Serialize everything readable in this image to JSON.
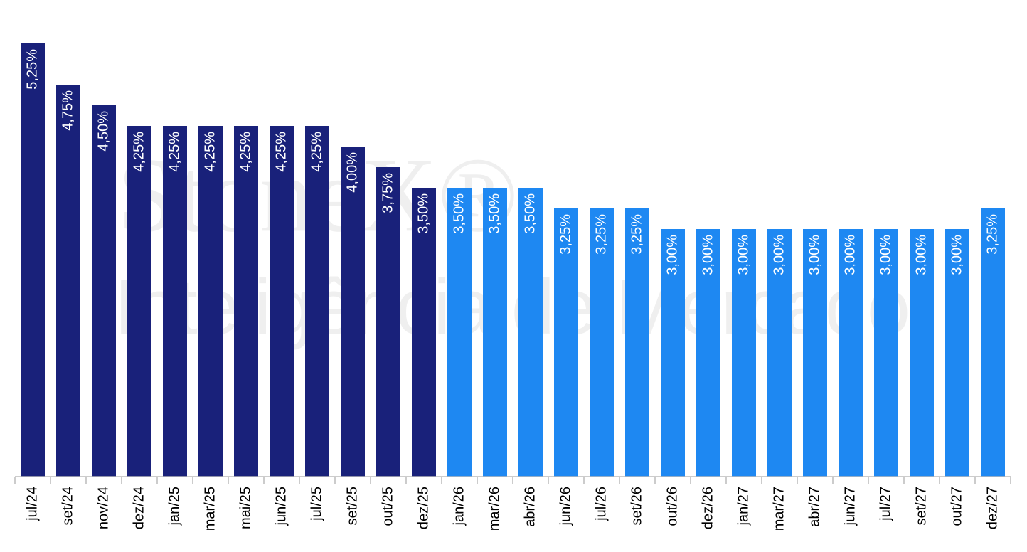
{
  "chart_data": {
    "type": "bar",
    "watermark": [
      "StoneX®",
      "Inteligência de Mercado"
    ],
    "categories": [
      "jul/24",
      "set/24",
      "nov/24",
      "dez/24",
      "jan/25",
      "mar/25",
      "mai/25",
      "jun/25",
      "jul/25",
      "set/25",
      "out/25",
      "dez/25",
      "jan/26",
      "mar/26",
      "abr/26",
      "jun/26",
      "jul/26",
      "set/26",
      "out/26",
      "dez/26",
      "jan/27",
      "mar/27",
      "abr/27",
      "jun/27",
      "jul/27",
      "set/27",
      "out/27",
      "dez/27"
    ],
    "values": [
      5.25,
      4.75,
      4.5,
      4.25,
      4.25,
      4.25,
      4.25,
      4.25,
      4.25,
      4.0,
      3.75,
      3.5,
      3.5,
      3.5,
      3.5,
      3.25,
      3.25,
      3.25,
      3.0,
      3.0,
      3.0,
      3.0,
      3.0,
      3.0,
      3.0,
      3.0,
      3.0,
      3.25
    ],
    "value_labels": [
      "5,25%",
      "4,75%",
      "4,50%",
      "4,25%",
      "4,25%",
      "4,25%",
      "4,25%",
      "4,25%",
      "4,25%",
      "4,00%",
      "3,75%",
      "3,50%",
      "3,50%",
      "3,50%",
      "3,50%",
      "3,25%",
      "3,25%",
      "3,25%",
      "3,00%",
      "3,00%",
      "3,00%",
      "3,00%",
      "3,00%",
      "3,00%",
      "3,00%",
      "3,00%",
      "3,00%",
      "3,25%"
    ],
    "colors": [
      "#19217a",
      "#19217a",
      "#19217a",
      "#19217a",
      "#19217a",
      "#19217a",
      "#19217a",
      "#19217a",
      "#19217a",
      "#19217a",
      "#19217a",
      "#19217a",
      "#1e88f2",
      "#1e88f2",
      "#1e88f2",
      "#1e88f2",
      "#1e88f2",
      "#1e88f2",
      "#1e88f2",
      "#1e88f2",
      "#1e88f2",
      "#1e88f2",
      "#1e88f2",
      "#1e88f2",
      "#1e88f2",
      "#1e88f2",
      "#1e88f2",
      "#1e88f2"
    ],
    "ylim": [
      0,
      5.25
    ]
  }
}
